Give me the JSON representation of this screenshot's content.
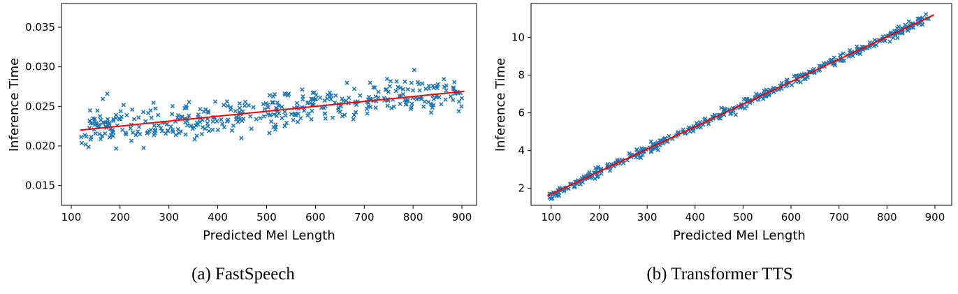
{
  "chart_data": [
    {
      "type": "scatter",
      "caption": "(a) FastSpeech",
      "xlabel": "Predicted Mel Length",
      "ylabel": "Inference Time",
      "xlim": [
        80,
        930
      ],
      "ylim": [
        0.0125,
        0.038
      ],
      "xticks": [
        100,
        200,
        300,
        400,
        500,
        600,
        700,
        800,
        900
      ],
      "yticks": [
        0.015,
        0.02,
        0.025,
        0.03,
        0.035
      ],
      "ytick_labels": [
        "0.015",
        "0.020",
        "0.025",
        "0.030",
        "0.035"
      ],
      "marker": "x",
      "marker_color": "#1f77b4",
      "fit_color": "#ff0000",
      "grid": false,
      "fit_line": {
        "x": [
          118,
          905
        ],
        "y": [
          0.022,
          0.0269
        ]
      },
      "series_spec": {
        "n": 420,
        "x_range": [
          120,
          900
        ],
        "intercept": 0.02125,
        "slope": 6.2e-06,
        "noise_sd": 0.0012
      }
    },
    {
      "type": "scatter",
      "caption": "(b) Transformer TTS",
      "xlabel": "Predicted Mel Length",
      "ylabel": "Inference Time",
      "xlim": [
        58,
        935
      ],
      "ylim": [
        1.1,
        11.8
      ],
      "xticks": [
        100,
        200,
        300,
        400,
        500,
        600,
        700,
        800,
        900
      ],
      "yticks": [
        2,
        4,
        6,
        8,
        10
      ],
      "ytick_labels": [
        "2",
        "4",
        "6",
        "8",
        "10"
      ],
      "marker": "x",
      "marker_color": "#1f77b4",
      "fit_color": "#ff0000",
      "grid": false,
      "fit_line": {
        "x": [
          92,
          898
        ],
        "y": [
          1.6,
          11.2
        ]
      },
      "series_spec": {
        "n": 450,
        "x_range": [
          92,
          898
        ],
        "intercept": 0.5,
        "slope": 0.0119,
        "noise_sd": 0.12
      }
    }
  ]
}
